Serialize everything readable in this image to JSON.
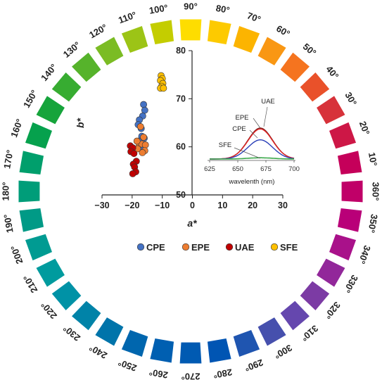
{
  "hue_wheel": {
    "labels": [
      "90°",
      "80°",
      "70°",
      "60°",
      "50°",
      "40°",
      "30°",
      "20°",
      "10°",
      "360°",
      "350°",
      "340°",
      "330°",
      "320°",
      "310°",
      "300°",
      "290°",
      "280°",
      "270°",
      "260°",
      "250°",
      "240°",
      "230°",
      "220°",
      "210°",
      "200°",
      "190°",
      "180°",
      "170°",
      "160°",
      "150°",
      "140°",
      "130°",
      "120°",
      "110°",
      "100°"
    ],
    "colors": [
      "#fedd00",
      "#fdca00",
      "#fcb400",
      "#f99713",
      "#f5741f",
      "#e9512a",
      "#d7323a",
      "#cd1746",
      "#c5005a",
      "#c00068",
      "#b90078",
      "#a9118a",
      "#92279a",
      "#7c3ba4",
      "#6547ae",
      "#4650ad",
      "#1f55b0",
      "#0055b3",
      "#005ab2",
      "#005fb1",
      "#0066ae",
      "#0074aa",
      "#0083a8",
      "#0092a6",
      "#009b9e",
      "#009b92",
      "#009a86",
      "#009d79",
      "#009f6c",
      "#06a14d",
      "#16a43b",
      "#37ac31",
      "#56b32b",
      "#7bbc24",
      "#9cc416",
      "#c4cd00"
    ]
  },
  "chart_data": {
    "type": "scatter",
    "xlabel": "a*",
    "ylabel": "b*",
    "xlim": [
      -30,
      30
    ],
    "ylim": [
      50,
      80
    ],
    "x_ticks": [
      "−30",
      "−20",
      "−10",
      "0",
      "10",
      "20",
      "30"
    ],
    "y_ticks": [
      "50",
      "60",
      "70",
      "80"
    ],
    "legend_position": "bottom",
    "series": [
      {
        "name": "CPE",
        "color": "#4472c4",
        "points": [
          [
            -16.2,
            68.8
          ],
          [
            -15.8,
            67.6
          ],
          [
            -16.5,
            66.4
          ],
          [
            -17.6,
            65.6
          ],
          [
            -18.0,
            64.6
          ],
          [
            -17.0,
            63.8
          ],
          [
            -16.8,
            62.2
          ],
          [
            -17.8,
            61.2
          ],
          [
            -16.0,
            61.8
          ],
          [
            -16.6,
            59.8
          ]
        ]
      },
      {
        "name": "EPE",
        "color": "#ed7d31",
        "points": [
          [
            -17.2,
            64.2
          ],
          [
            -16.2,
            62.0
          ],
          [
            -17.6,
            60.4
          ],
          [
            -16.8,
            60.6
          ],
          [
            -15.6,
            60.4
          ],
          [
            -15.8,
            59.2
          ],
          [
            -16.6,
            58.8
          ],
          [
            -18.2,
            59.6
          ],
          [
            -18.4,
            61.2
          ]
        ]
      },
      {
        "name": "UAE",
        "color": "#c00000",
        "points": [
          [
            -20.6,
            60.2
          ],
          [
            -19.8,
            59.8
          ],
          [
            -20.4,
            59.0
          ],
          [
            -19.4,
            58.6
          ],
          [
            -18.6,
            57.0
          ],
          [
            -19.6,
            56.4
          ],
          [
            -19.2,
            55.8
          ],
          [
            -18.8,
            54.8
          ],
          [
            -19.8,
            54.4
          ]
        ]
      },
      {
        "name": "SFE",
        "color": "#ffc000",
        "points": [
          [
            -10.4,
            74.8
          ],
          [
            -10.0,
            74.2
          ],
          [
            -10.6,
            73.8
          ],
          [
            -9.8,
            73.2
          ],
          [
            -10.2,
            72.6
          ],
          [
            -10.6,
            72.2
          ],
          [
            -9.6,
            72.2
          ]
        ]
      }
    ],
    "inset": {
      "type": "line",
      "xlabel": "wavelenth (nm)",
      "x_ticks": [
        "625",
        "650",
        "675",
        "700"
      ],
      "xlim": [
        625,
        700
      ],
      "curve_labels": [
        "UAE",
        "EPE",
        "CPE",
        "SFE"
      ],
      "series": [
        {
          "name": "UAE",
          "color": "#7a1f1f",
          "peak_nm": 670,
          "peak": 1.0
        },
        {
          "name": "EPE",
          "color": "#e02424",
          "peak_nm": 670,
          "peak": 0.97
        },
        {
          "name": "CPE",
          "color": "#2a3fb8",
          "peak_nm": 670,
          "peak": 0.62
        },
        {
          "name": "SFE",
          "color": "#3aa84a",
          "peak_nm": 670,
          "peak": 0.04
        }
      ]
    }
  }
}
